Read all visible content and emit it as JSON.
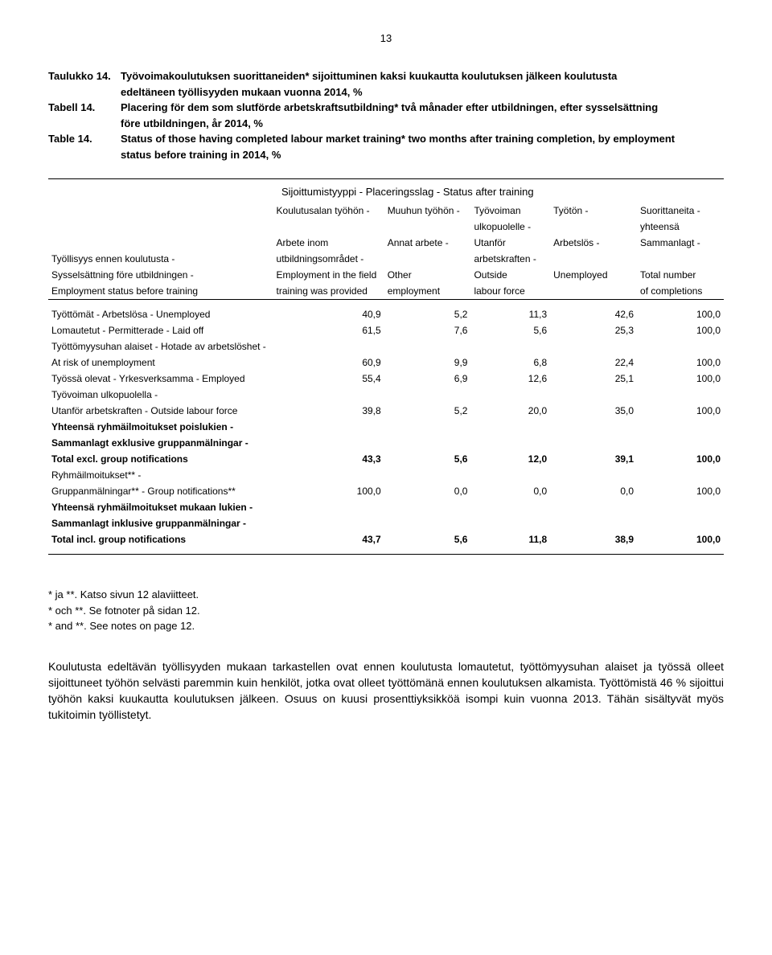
{
  "page_number": "13",
  "titles": {
    "fi_label": "Taulukko 14.",
    "fi_text1": "Työvoimakoulutuksen suorittaneiden* sijoittuminen kaksi kuukautta koulutuksen jälkeen koulutusta",
    "fi_text2": "edeltäneen työllisyyden mukaan vuonna 2014, %",
    "sv_label": "Tabell 14.",
    "sv_text1": "Placering för dem som slutförde arbetskraftsutbildning* två månader efter utbildningen, efter sysselsättning",
    "sv_text2": "före utbildningen, år 2014, %",
    "en_label": "Table 14.",
    "en_text1": "Status of those having completed labour market training* two months after training completion, by employment",
    "en_text2": "status before training in 2014, %"
  },
  "header_super": "Sijoittumistyyppi - Placeringsslag - Status after training",
  "columns": {
    "row_label_fi": "Työllisyys ennen koulutusta -",
    "row_label_sv": "Sysselsättning före utbildningen -",
    "row_label_en": "Employment status before training",
    "c1_1": "Koulutusalan työhön -",
    "c1_2": "",
    "c1_3": "Arbete inom",
    "c1_4": "utbildningsområdet -",
    "c1_5": "Employment in the field",
    "c1_6": "training was provided",
    "c2_1": "Muuhun työhön -",
    "c2_3": "Annat arbete -",
    "c2_5": "Other",
    "c2_6": "employment",
    "c3_1": "Työvoiman",
    "c3_2": "ulkopuolelle -",
    "c3_3": "Utanför",
    "c3_4": "arbetskraften -",
    "c3_5": "Outside",
    "c3_6": "labour force",
    "c4_1": "Työtön -",
    "c4_3": "Arbetslös -",
    "c4_5": "Unemployed",
    "c5_1": "Suorittaneita -",
    "c5_2": "yhteensä",
    "c5_3": "Sammanlagt -",
    "c5_5": "Total number",
    "c5_6": "of completions"
  },
  "rows": [
    {
      "label": "Työttömät - Arbetslösa - Unemployed",
      "v": [
        "40,9",
        "5,2",
        "11,3",
        "42,6",
        "100,0"
      ],
      "bold": false
    },
    {
      "label": "Lomautetut - Permitterade - Laid off",
      "v": [
        "61,5",
        "7,6",
        "5,6",
        "25,3",
        "100,0"
      ],
      "bold": false
    },
    {
      "label": "Työttömyysuhan alaiset - Hotade av arbetslöshet -",
      "v": [
        "",
        "",
        "",
        "",
        ""
      ],
      "bold": false
    },
    {
      "label": "At risk of unemployment",
      "v": [
        "60,9",
        "9,9",
        "6,8",
        "22,4",
        "100,0"
      ],
      "bold": false
    },
    {
      "label": "Työssä olevat - Yrkesverksamma - Employed",
      "v": [
        "55,4",
        "6,9",
        "12,6",
        "25,1",
        "100,0"
      ],
      "bold": false
    },
    {
      "label": "Työvoiman ulkopuolella -",
      "v": [
        "",
        "",
        "",
        "",
        ""
      ],
      "bold": false
    },
    {
      "label": "Utanför arbetskraften - Outside labour force",
      "v": [
        "39,8",
        "5,2",
        "20,0",
        "35,0",
        "100,0"
      ],
      "bold": false
    }
  ],
  "group1": {
    "l1": "Yhteensä ryhmäilmoitukset poislukien -",
    "l2": "Sammanlagt exklusive gruppanmälningar -",
    "l3": "Total excl. group notifications",
    "v": [
      "43,3",
      "5,6",
      "12,0",
      "39,1",
      "100,0"
    ]
  },
  "group2": {
    "l1": "Ryhmäilmoitukset** -",
    "l2": "Gruppanmälningar** - Group notifications**",
    "v": [
      "100,0",
      "0,0",
      "0,0",
      "0,0",
      "100,0"
    ]
  },
  "group3": {
    "l1": "Yhteensä ryhmäilmoitukset mukaan lukien -",
    "l2": "Sammanlagt inklusive gruppanmälningar -",
    "l3": "Total incl. group notifications",
    "v": [
      "43,7",
      "5,6",
      "11,8",
      "38,9",
      "100,0"
    ]
  },
  "footnotes": {
    "f1": "* ja **. Katso sivun 12 alaviitteet.",
    "f2": "* och **. Se fotnoter på sidan 12.",
    "f3": "* and **. See notes on page 12."
  },
  "paragraph": "Koulutusta edeltävän työllisyyden mukaan tarkastellen ovat ennen koulutusta lomautetut, työttömyysuhan alaiset ja työssä olleet sijoittuneet työhön selvästi paremmin kuin henkilöt, jotka ovat olleet työttömänä ennen koulutuksen alkamista. Työttömistä 46 % sijoittui työhön kaksi kuukautta koulutuksen jälkeen. Osuus on kuusi prosenttiyksikköä isompi kuin vuonna 2013. Tähän sisältyvät myös tukitoimin työllistetyt.",
  "style": {
    "col_widths": [
      "290px",
      "130px",
      "100px",
      "90px",
      "100px",
      "100px"
    ]
  }
}
